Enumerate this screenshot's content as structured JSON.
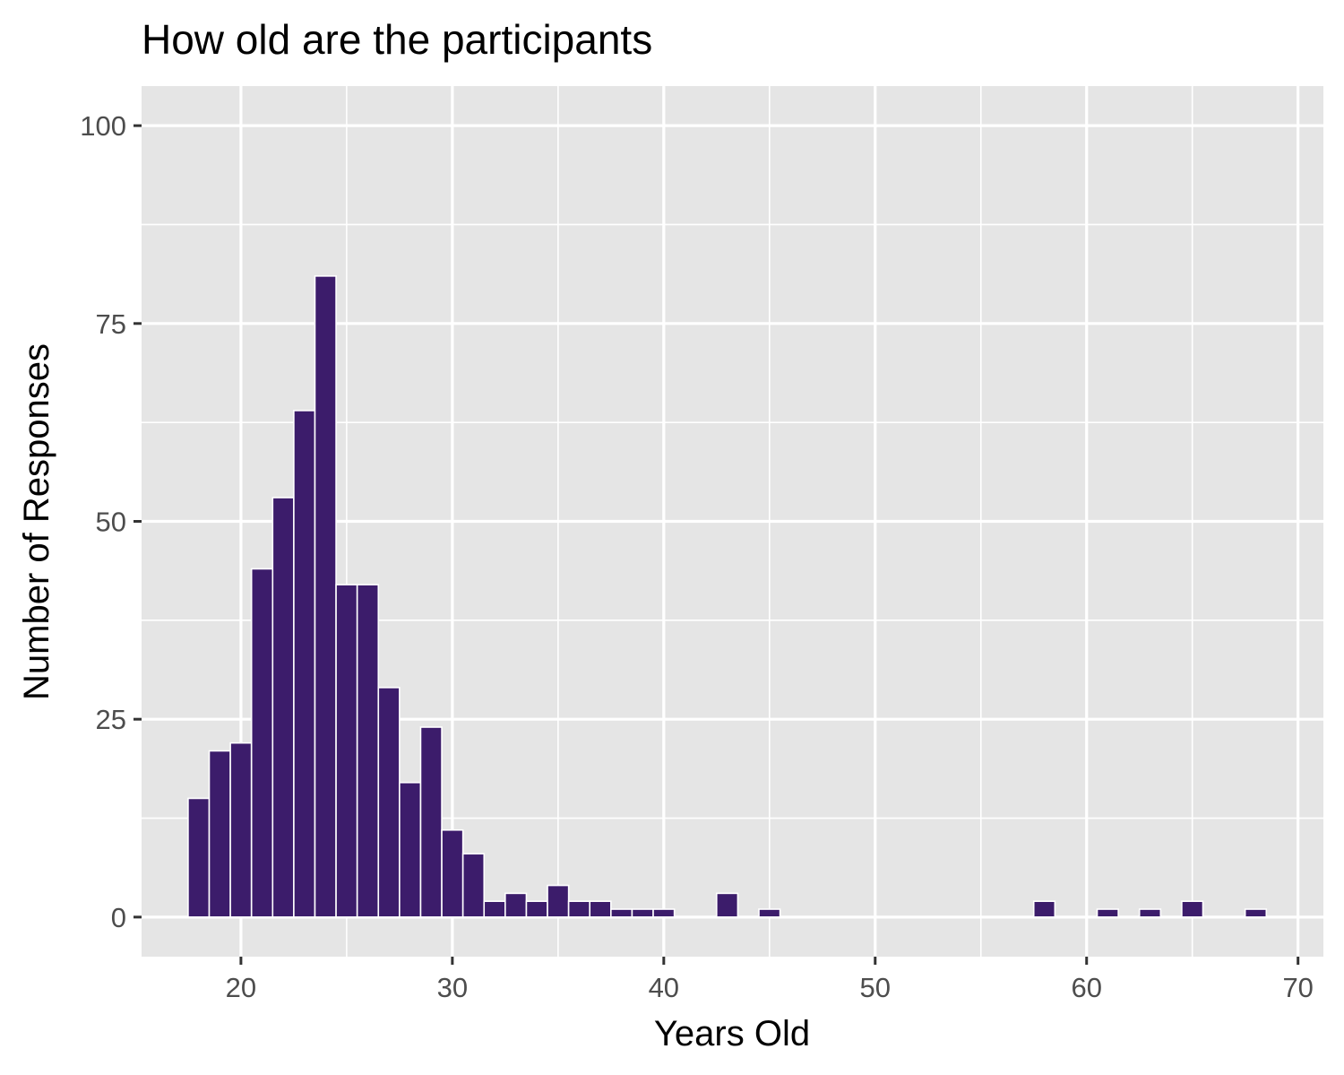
{
  "chart_data": {
    "type": "bar",
    "title": "How old are the participants",
    "xlabel": "Years Old",
    "ylabel": "Number of Responses",
    "x": [
      18,
      19,
      20,
      21,
      22,
      23,
      24,
      25,
      26,
      27,
      28,
      29,
      30,
      31,
      32,
      33,
      34,
      35,
      36,
      37,
      38,
      39,
      40,
      43,
      45,
      58,
      61,
      63,
      65,
      68
    ],
    "values": [
      15,
      21,
      22,
      44,
      53,
      64,
      81,
      42,
      42,
      29,
      17,
      24,
      11,
      8,
      2,
      3,
      2,
      4,
      2,
      2,
      1,
      1,
      1,
      3,
      1,
      2,
      1,
      1,
      2,
      1
    ],
    "xlim": [
      15.3,
      71.2
    ],
    "ylim": [
      -5,
      105
    ],
    "xticks": [
      20,
      30,
      40,
      50,
      60,
      70
    ],
    "yticks": [
      0,
      25,
      50,
      75,
      100
    ],
    "grid": true,
    "legend": "none",
    "colors": {
      "bar": "#3c1c6b",
      "panel": "#e5e5e5",
      "grid": "#ffffff",
      "tick_text": "#4d4d4d",
      "tick_mark": "#333333"
    }
  }
}
